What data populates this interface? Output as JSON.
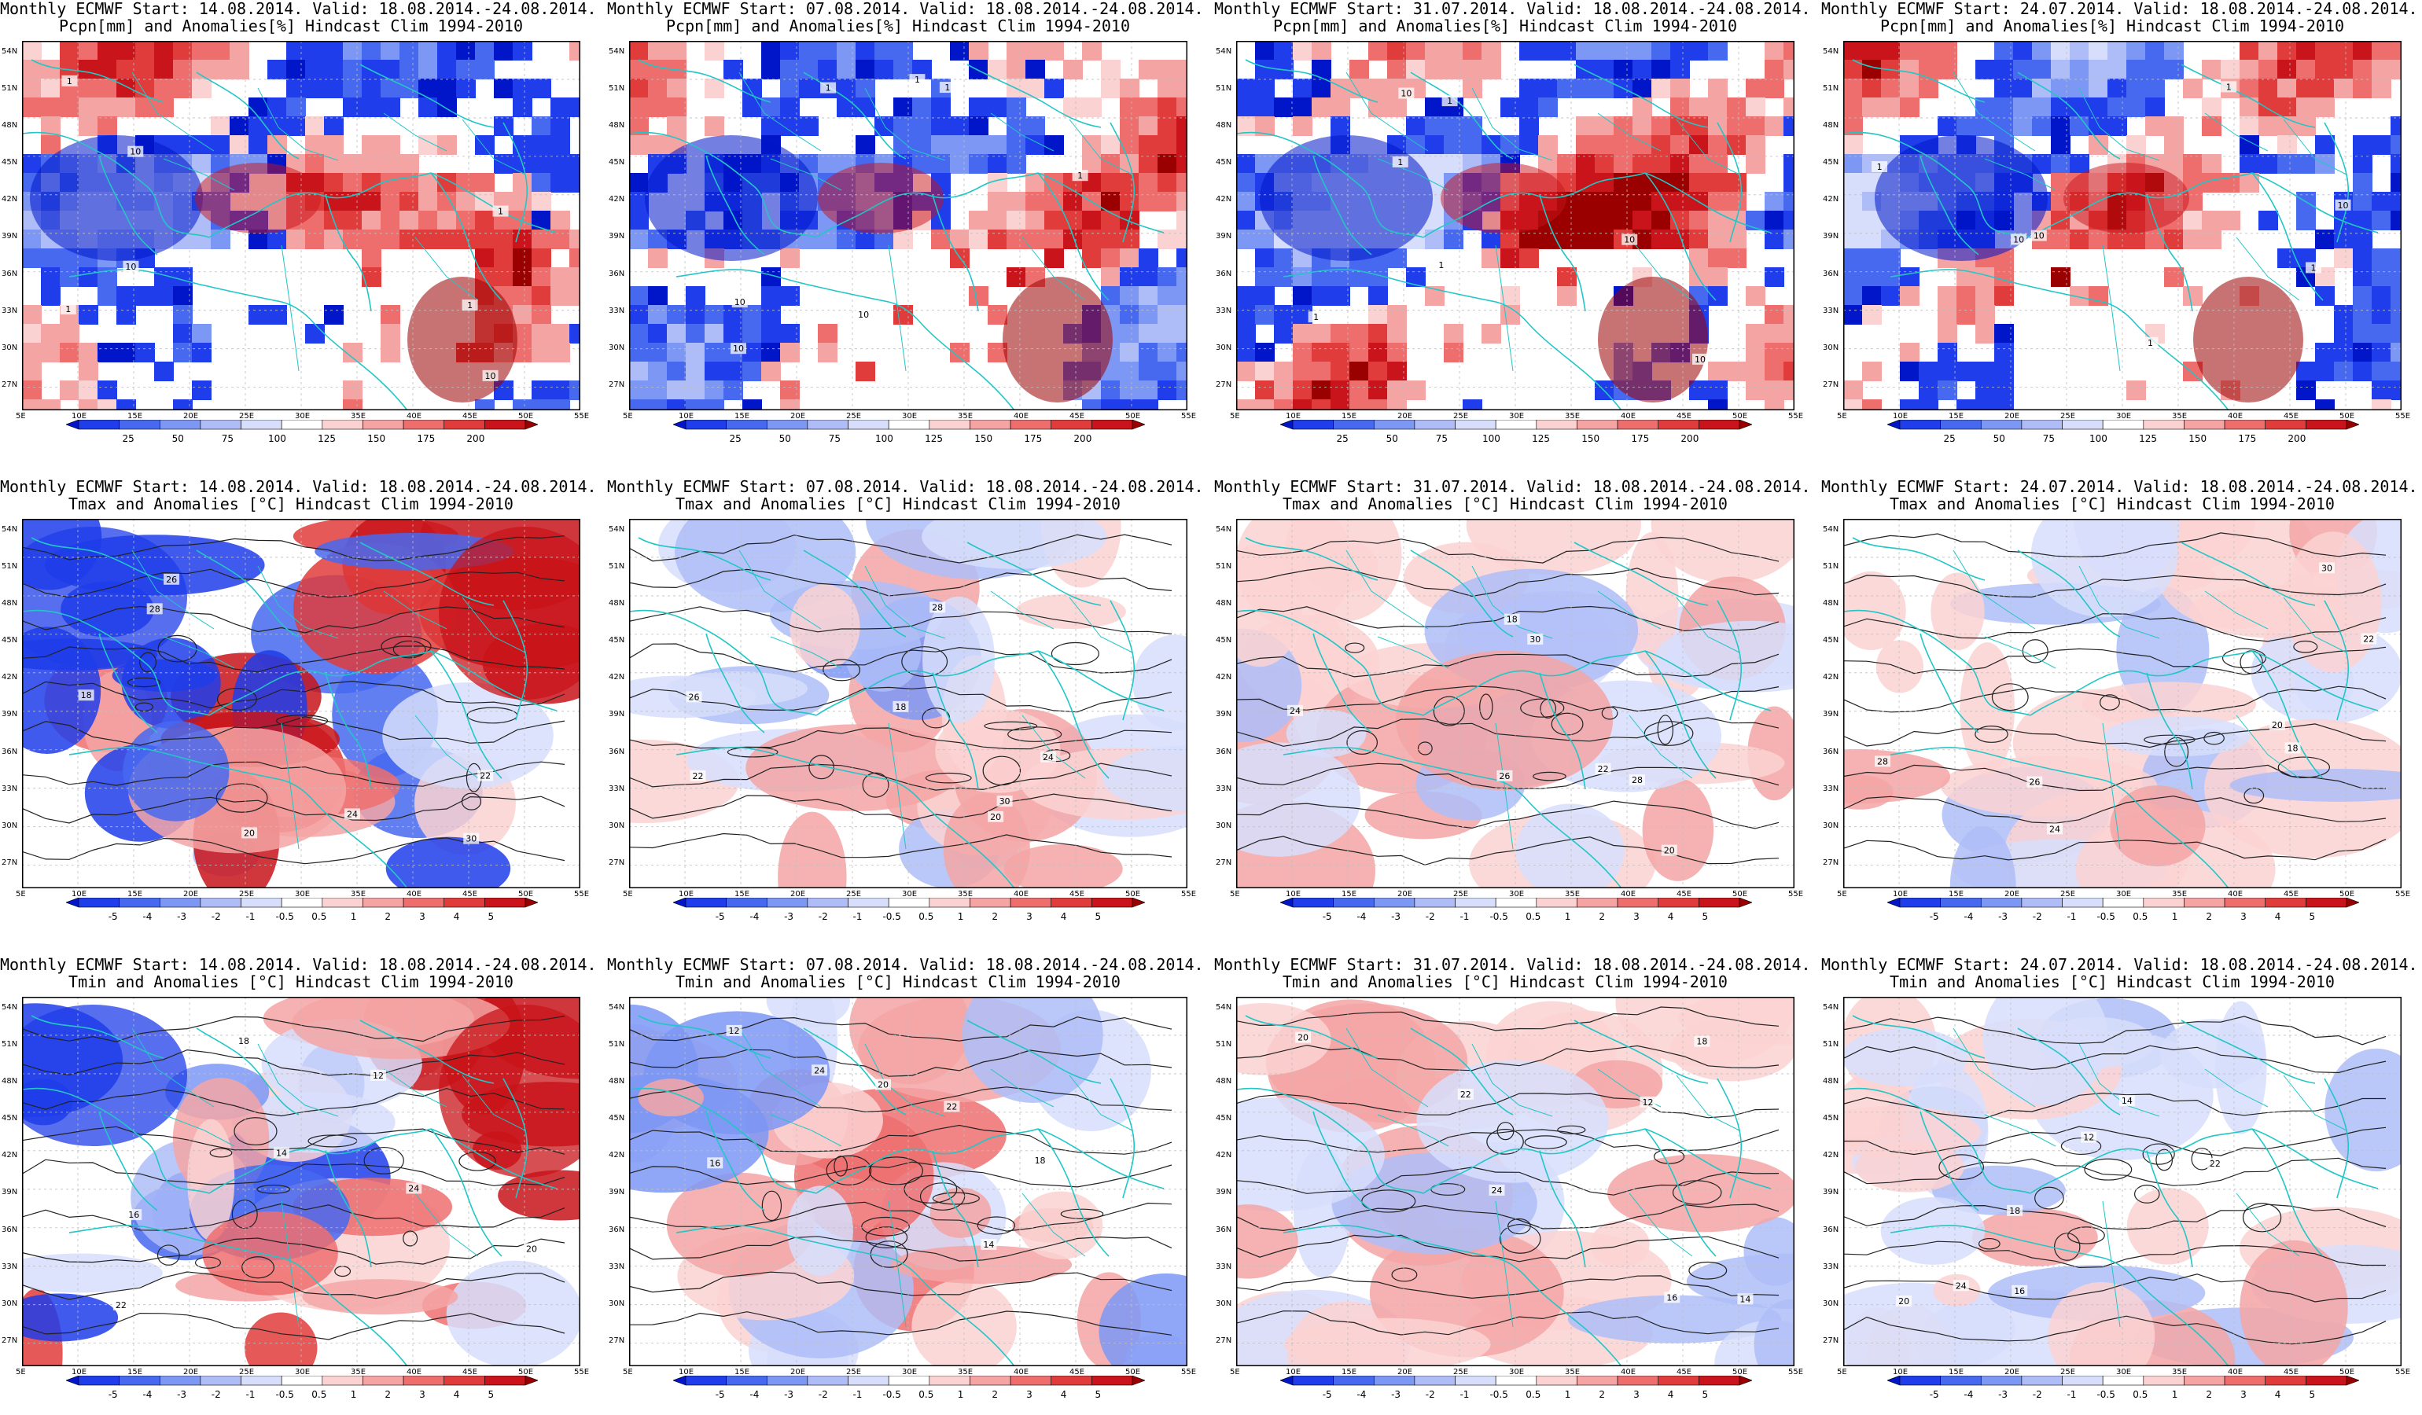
{
  "titles": {
    "line1": [
      "Monthly ECMWF Start: 14.08.2014. Valid: 18.08.2014.-24.08.2014.",
      "Monthly ECMWF Start: 07.08.2014. Valid: 18.08.2014.-24.08.2014.",
      "Monthly ECMWF Start: 31.07.2014. Valid: 18.08.2014.-24.08.2014.",
      "Monthly ECMWF Start: 24.07.2014. Valid: 18.08.2014.-24.08.2014."
    ],
    "line2": [
      "Pcpn[mm] and Anomalies[%] Hindcast Clim 1994-2010",
      "Tmax and Anomalies [°C] Hindcast Clim 1994-2010",
      "Tmin and Anomalies [°C] Hindcast Clim 1994-2010"
    ]
  },
  "axes": {
    "lon_labels": [
      "5E",
      "10E",
      "15E",
      "20E",
      "25E",
      "30E",
      "35E",
      "40E",
      "45E",
      "50E",
      "55E"
    ],
    "lat_labels": [
      "54N",
      "51N",
      "48N",
      "45N",
      "42N",
      "39N",
      "36N",
      "33N",
      "30N",
      "27N"
    ]
  },
  "colorbars": {
    "precip": {
      "labels": [
        "25",
        "50",
        "75",
        "100",
        "125",
        "150",
        "175",
        "200"
      ],
      "colors": [
        "#0016c8",
        "#1f3dea",
        "#4669f0",
        "#7d97f5",
        "#aebdf8",
        "#d7defb",
        "#ffffff",
        "#fbd2d2",
        "#f5a4a4",
        "#ee6e6e",
        "#e03c3c",
        "#c8141a",
        "#9b0000"
      ]
    },
    "temp": {
      "labels": [
        "-5",
        "-4",
        "-3",
        "-2",
        "-1",
        "-0.5",
        "0.5",
        "1",
        "2",
        "3",
        "4",
        "5"
      ],
      "colors": [
        "#0016c8",
        "#1f3dea",
        "#4669f0",
        "#7d97f5",
        "#aebdf8",
        "#d7defb",
        "#ffffff",
        "#fbd2d2",
        "#f5a4a4",
        "#ee6e6e",
        "#e03c3c",
        "#c8141a",
        "#9b0000"
      ]
    }
  },
  "field_colors": {
    "precip_wet": "#2d44e0",
    "precip_dry": "#b30a0a",
    "cold": "#6478e6",
    "warm": "#e63c3c",
    "contour": "#222222",
    "coast": "#22c6c6"
  },
  "contour_labels": {
    "precip": [
      "1",
      "10"
    ],
    "tmax": [
      "18",
      "20",
      "22",
      "24",
      "26",
      "28",
      "30"
    ],
    "tmin": [
      "12",
      "14",
      "16",
      "18",
      "20",
      "22",
      "24"
    ]
  }
}
